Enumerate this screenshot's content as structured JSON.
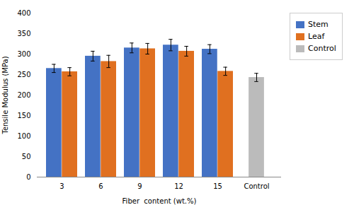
{
  "chart_data": {
    "type": "bar",
    "categories": [
      "3",
      "6",
      "9",
      "12",
      "15",
      "Control"
    ],
    "series": [
      {
        "name": "Stem",
        "color": "#4472C4",
        "values": [
          265,
          295,
          315,
          322,
          312,
          null
        ],
        "errors": [
          10,
          12,
          12,
          14,
          11,
          null
        ]
      },
      {
        "name": "Leaf",
        "color": "#E07020",
        "values": [
          257,
          282,
          313,
          307,
          258,
          null
        ],
        "errors": [
          10,
          15,
          13,
          12,
          10,
          null
        ]
      },
      {
        "name": "Control",
        "color": "#BBBBBB",
        "values": [
          null,
          null,
          null,
          null,
          null,
          243
        ],
        "errors": [
          null,
          null,
          null,
          null,
          null,
          10
        ]
      }
    ],
    "xlabel": "Fiber  content (wt.%)",
    "ylabel": "Tensile Modulus (MPa)",
    "ylim": [
      0,
      400
    ],
    "yticks": [
      0,
      50,
      100,
      150,
      200,
      250,
      300,
      350,
      400
    ],
    "grid": false,
    "legend": "upper right"
  }
}
